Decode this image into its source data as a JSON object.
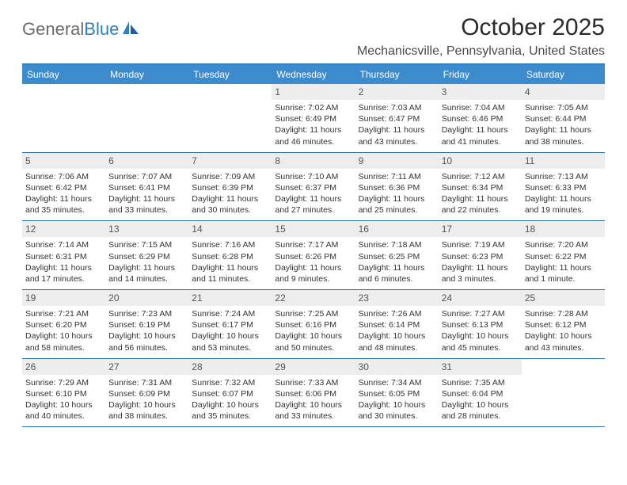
{
  "logo": {
    "text1": "General",
    "text2": "Blue"
  },
  "title": "October 2025",
  "location": "Mechanicsville, Pennsylvania, United States",
  "colors": {
    "header_bar": "#3c8ccd",
    "accent_line": "#2f7fc2",
    "daynum_bg": "#ededed",
    "text": "#333333"
  },
  "day_names": [
    "Sunday",
    "Monday",
    "Tuesday",
    "Wednesday",
    "Thursday",
    "Friday",
    "Saturday"
  ],
  "weeks": [
    [
      {
        "empty": true
      },
      {
        "empty": true
      },
      {
        "empty": true
      },
      {
        "n": "1",
        "sr": "Sunrise: 7:02 AM",
        "ss": "Sunset: 6:49 PM",
        "dl": "Daylight: 11 hours and 46 minutes."
      },
      {
        "n": "2",
        "sr": "Sunrise: 7:03 AM",
        "ss": "Sunset: 6:47 PM",
        "dl": "Daylight: 11 hours and 43 minutes."
      },
      {
        "n": "3",
        "sr": "Sunrise: 7:04 AM",
        "ss": "Sunset: 6:46 PM",
        "dl": "Daylight: 11 hours and 41 minutes."
      },
      {
        "n": "4",
        "sr": "Sunrise: 7:05 AM",
        "ss": "Sunset: 6:44 PM",
        "dl": "Daylight: 11 hours and 38 minutes."
      }
    ],
    [
      {
        "n": "5",
        "sr": "Sunrise: 7:06 AM",
        "ss": "Sunset: 6:42 PM",
        "dl": "Daylight: 11 hours and 35 minutes."
      },
      {
        "n": "6",
        "sr": "Sunrise: 7:07 AM",
        "ss": "Sunset: 6:41 PM",
        "dl": "Daylight: 11 hours and 33 minutes."
      },
      {
        "n": "7",
        "sr": "Sunrise: 7:09 AM",
        "ss": "Sunset: 6:39 PM",
        "dl": "Daylight: 11 hours and 30 minutes."
      },
      {
        "n": "8",
        "sr": "Sunrise: 7:10 AM",
        "ss": "Sunset: 6:37 PM",
        "dl": "Daylight: 11 hours and 27 minutes."
      },
      {
        "n": "9",
        "sr": "Sunrise: 7:11 AM",
        "ss": "Sunset: 6:36 PM",
        "dl": "Daylight: 11 hours and 25 minutes."
      },
      {
        "n": "10",
        "sr": "Sunrise: 7:12 AM",
        "ss": "Sunset: 6:34 PM",
        "dl": "Daylight: 11 hours and 22 minutes."
      },
      {
        "n": "11",
        "sr": "Sunrise: 7:13 AM",
        "ss": "Sunset: 6:33 PM",
        "dl": "Daylight: 11 hours and 19 minutes."
      }
    ],
    [
      {
        "n": "12",
        "sr": "Sunrise: 7:14 AM",
        "ss": "Sunset: 6:31 PM",
        "dl": "Daylight: 11 hours and 17 minutes."
      },
      {
        "n": "13",
        "sr": "Sunrise: 7:15 AM",
        "ss": "Sunset: 6:29 PM",
        "dl": "Daylight: 11 hours and 14 minutes."
      },
      {
        "n": "14",
        "sr": "Sunrise: 7:16 AM",
        "ss": "Sunset: 6:28 PM",
        "dl": "Daylight: 11 hours and 11 minutes."
      },
      {
        "n": "15",
        "sr": "Sunrise: 7:17 AM",
        "ss": "Sunset: 6:26 PM",
        "dl": "Daylight: 11 hours and 9 minutes."
      },
      {
        "n": "16",
        "sr": "Sunrise: 7:18 AM",
        "ss": "Sunset: 6:25 PM",
        "dl": "Daylight: 11 hours and 6 minutes."
      },
      {
        "n": "17",
        "sr": "Sunrise: 7:19 AM",
        "ss": "Sunset: 6:23 PM",
        "dl": "Daylight: 11 hours and 3 minutes."
      },
      {
        "n": "18",
        "sr": "Sunrise: 7:20 AM",
        "ss": "Sunset: 6:22 PM",
        "dl": "Daylight: 11 hours and 1 minute."
      }
    ],
    [
      {
        "n": "19",
        "sr": "Sunrise: 7:21 AM",
        "ss": "Sunset: 6:20 PM",
        "dl": "Daylight: 10 hours and 58 minutes."
      },
      {
        "n": "20",
        "sr": "Sunrise: 7:23 AM",
        "ss": "Sunset: 6:19 PM",
        "dl": "Daylight: 10 hours and 56 minutes."
      },
      {
        "n": "21",
        "sr": "Sunrise: 7:24 AM",
        "ss": "Sunset: 6:17 PM",
        "dl": "Daylight: 10 hours and 53 minutes."
      },
      {
        "n": "22",
        "sr": "Sunrise: 7:25 AM",
        "ss": "Sunset: 6:16 PM",
        "dl": "Daylight: 10 hours and 50 minutes."
      },
      {
        "n": "23",
        "sr": "Sunrise: 7:26 AM",
        "ss": "Sunset: 6:14 PM",
        "dl": "Daylight: 10 hours and 48 minutes."
      },
      {
        "n": "24",
        "sr": "Sunrise: 7:27 AM",
        "ss": "Sunset: 6:13 PM",
        "dl": "Daylight: 10 hours and 45 minutes."
      },
      {
        "n": "25",
        "sr": "Sunrise: 7:28 AM",
        "ss": "Sunset: 6:12 PM",
        "dl": "Daylight: 10 hours and 43 minutes."
      }
    ],
    [
      {
        "n": "26",
        "sr": "Sunrise: 7:29 AM",
        "ss": "Sunset: 6:10 PM",
        "dl": "Daylight: 10 hours and 40 minutes."
      },
      {
        "n": "27",
        "sr": "Sunrise: 7:31 AM",
        "ss": "Sunset: 6:09 PM",
        "dl": "Daylight: 10 hours and 38 minutes."
      },
      {
        "n": "28",
        "sr": "Sunrise: 7:32 AM",
        "ss": "Sunset: 6:07 PM",
        "dl": "Daylight: 10 hours and 35 minutes."
      },
      {
        "n": "29",
        "sr": "Sunrise: 7:33 AM",
        "ss": "Sunset: 6:06 PM",
        "dl": "Daylight: 10 hours and 33 minutes."
      },
      {
        "n": "30",
        "sr": "Sunrise: 7:34 AM",
        "ss": "Sunset: 6:05 PM",
        "dl": "Daylight: 10 hours and 30 minutes."
      },
      {
        "n": "31",
        "sr": "Sunrise: 7:35 AM",
        "ss": "Sunset: 6:04 PM",
        "dl": "Daylight: 10 hours and 28 minutes."
      },
      {
        "empty": true
      }
    ]
  ]
}
